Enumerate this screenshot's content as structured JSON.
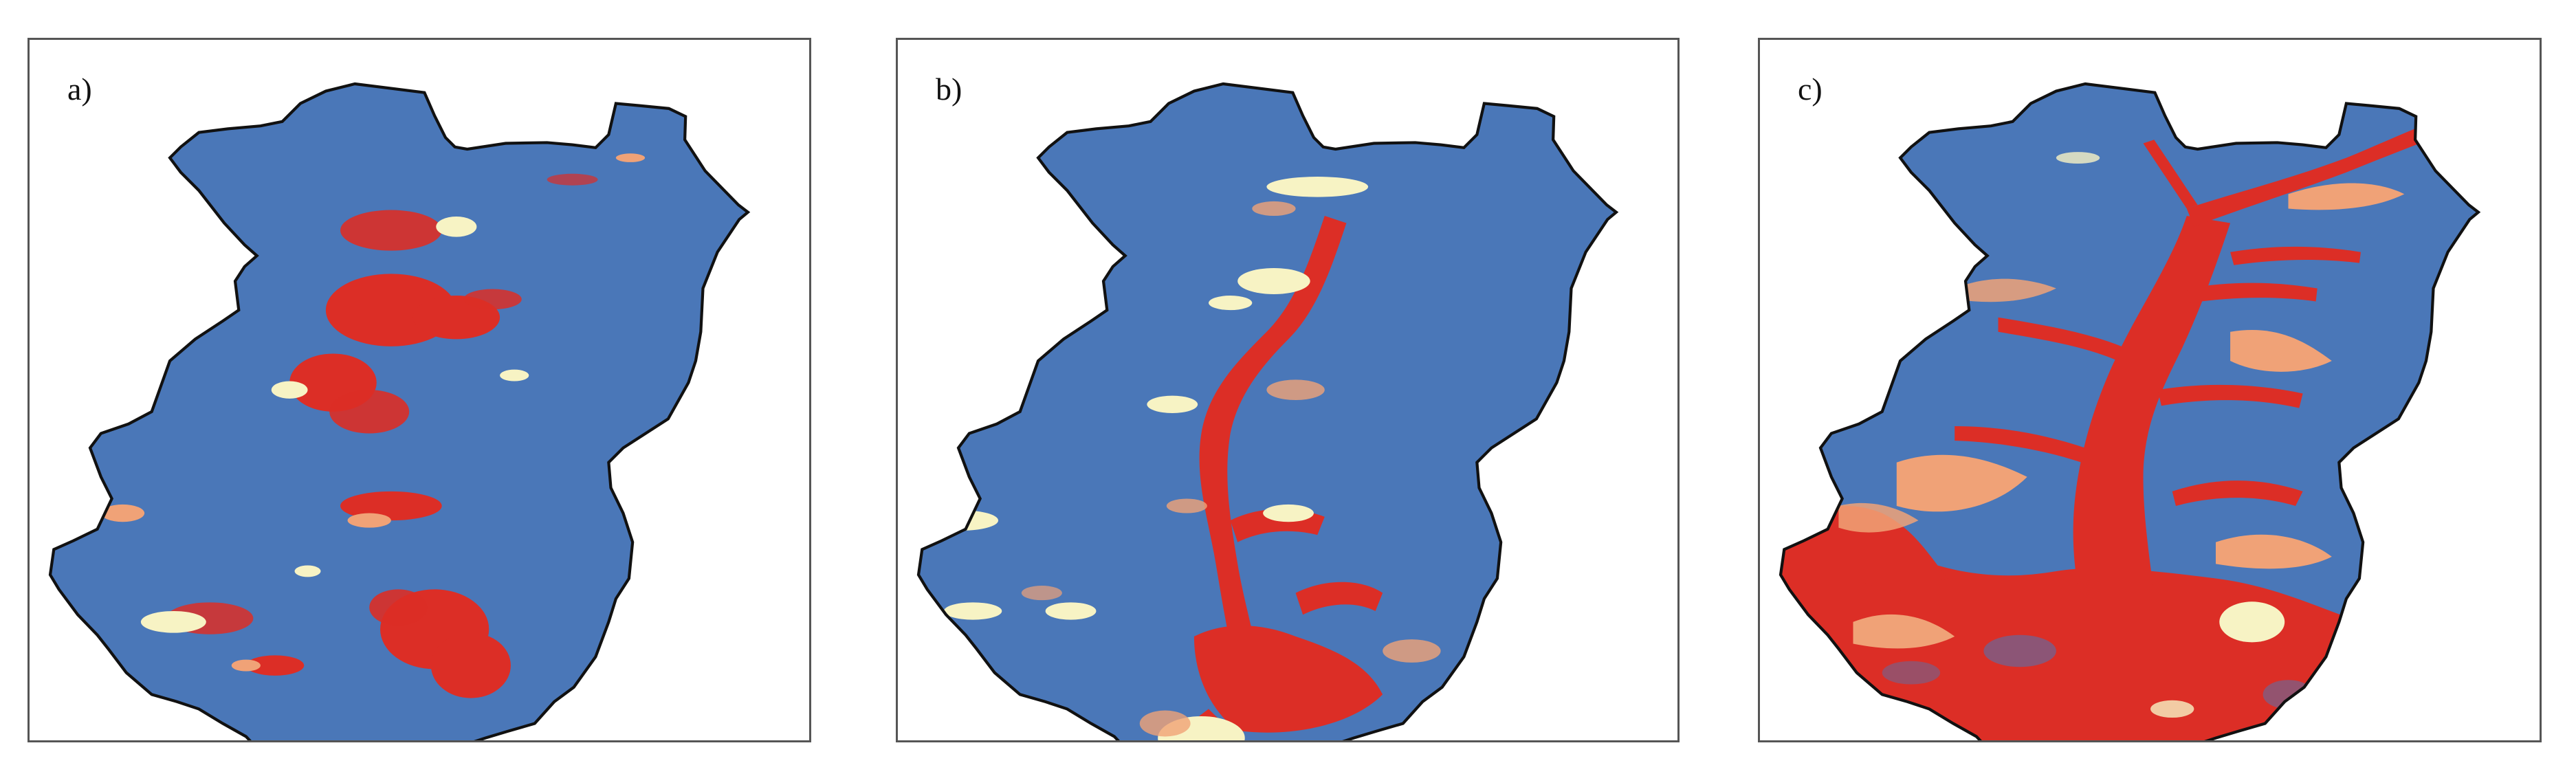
{
  "figure": {
    "panels": [
      {
        "id": "a",
        "label": "a)"
      },
      {
        "id": "b",
        "label": "b)"
      },
      {
        "id": "c",
        "label": "c)"
      }
    ]
  },
  "colors": {
    "basin_fill": "#4a77b8",
    "outline": "#111111",
    "high_class": "#dc2e26",
    "medium_class": "#f0a277",
    "low_class": "#f7f3c4",
    "frame": "#555555"
  }
}
